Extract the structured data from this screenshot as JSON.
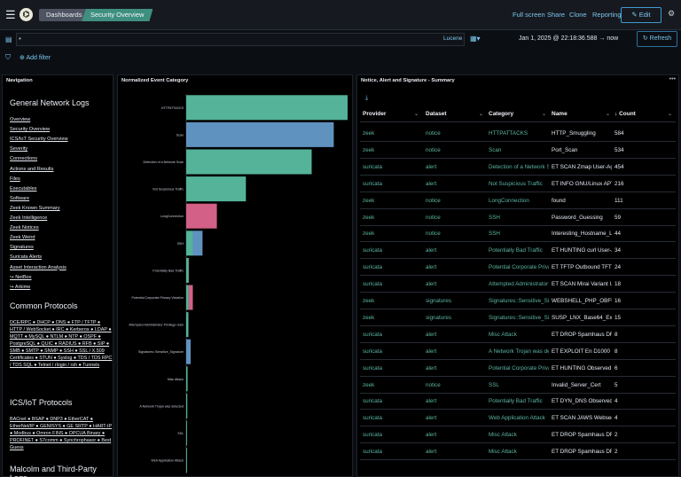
{
  "topbar": {
    "breadcrumb_1": "Dashboards",
    "breadcrumb_2": "Security Overview",
    "links": [
      "Full screen",
      "Share",
      "Clone",
      "Reporting"
    ],
    "edit_label": "Edit",
    "logo_glyph": "⌬"
  },
  "query": {
    "value": "*",
    "language": "Lucene",
    "date_range": "Jan 1, 2025 @ 22:18:36.588",
    "date_arrow": "→",
    "date_end": "now",
    "refresh_label": "Refresh"
  },
  "filter": {
    "add_label": "Add filter"
  },
  "nav": {
    "title": "Navigation",
    "section1": "General Network Logs",
    "links": [
      "Overview",
      "Security Overview",
      "ICS/IoT Security Overview",
      "Severity",
      "Connections",
      "Actions and Results",
      "Files",
      "Executables",
      "Software",
      "Zeek Known Summary",
      "Zeek Intelligence",
      "Zeek Notices",
      "Zeek Weird",
      "Signatures",
      "Suricata Alerts",
      "Asset Interaction Analysis",
      "↪ NetBox",
      "↪ Arkime"
    ],
    "section2": "Common Protocols",
    "common_protocols": "DCE/RPC ● DHCP ● DNS ● FTP / TFTP ● HTTP / WebSocket ● IRC ● Kerberos ● LDAP ● MQTT ● MySQL ● NTLM ● NTP ● OSPF ● PostgreSQL ● QUIC ● RADIUS ● RFB ● SIP ● SMB ● SMTP ● SNMP ● SSH ● SSL / X.509 Certificates ● STUN ● Syslog ● TDS / TDS RPC / TDS SQL ● Telnet / rlogin / rsh ● Tunnels",
    "section3": "ICS/IoT Protocols",
    "ics_protocols": "BACnet ● BSAP ● DNP3 ● EtherCAT ● EtherNet/IP ● GENISYS ● GE SRTP ● HART-IP ● Modbus ● Omron FINS ● OPCUA Binary ● PROFINET ● S7comm ● Synchrophasor ● Best Guess",
    "section4": "Malcolm and Third-Party Logs"
  },
  "chart_panel": {
    "title": "Normalized Event Category"
  },
  "chart_data": {
    "type": "bar",
    "orientation": "horizontal",
    "stacked": true,
    "categories": [
      "HTTPATTACKS",
      "Scan",
      "Detection of a Network Scan",
      "Not Suspicious Traffic",
      "LongConnection",
      "SSH",
      "Potentially Bad Traffic",
      "Potential Corporate Privacy Violation",
      "Attempted Administrator Privilege Gain",
      "Signatures::Sensitive_Signature",
      "Misc Attack",
      "A Network Trojan was detected",
      "SSL",
      "Web Application Attack"
    ],
    "series": [
      {
        "color": "#54b399",
        "values": [
          584,
          0,
          454,
          216,
          0,
          24,
          9,
          9,
          8,
          0,
          5,
          4,
          3,
          3
        ]
      },
      {
        "color": "#6092c0",
        "values": [
          0,
          534,
          0,
          0,
          0,
          0,
          0,
          0,
          0,
          16,
          0,
          0,
          0,
          0
        ]
      },
      {
        "color": "#d36086",
        "values": [
          0,
          0,
          0,
          0,
          111,
          0,
          1,
          15,
          0,
          0,
          0,
          0,
          0,
          0
        ]
      },
      {
        "color": "#6092c0",
        "values": [
          0,
          0,
          0,
          0,
          0,
          35,
          0,
          0,
          0,
          0,
          0,
          0,
          0,
          0
        ]
      }
    ],
    "xlim": [
      0,
      584
    ]
  },
  "table_panel": {
    "title": "Notice, Alert and Signature - Summary",
    "download_icon": "download-icon"
  },
  "table": {
    "headers": [
      "Provider",
      "Dataset",
      "Category",
      "Name",
      "Count"
    ],
    "sort_arrow": "↓",
    "rows": [
      [
        "zeek",
        "notice",
        "HTTPATTACKS",
        "HTTP_Smuggling",
        "584"
      ],
      [
        "zeek",
        "notice",
        "Scan",
        "Port_Scan",
        "534"
      ],
      [
        "suricata",
        "alert",
        "Detection of a Network Sc",
        "ET SCAN Zmap User-Agen",
        "454"
      ],
      [
        "suricata",
        "alert",
        "Not Suspicious Traffic",
        "ET INFO GNU/Linux APT U",
        "216"
      ],
      [
        "zeek",
        "notice",
        "LongConnection",
        "found",
        "111"
      ],
      [
        "zeek",
        "notice",
        "SSH",
        "Password_Guessing",
        "59"
      ],
      [
        "zeek",
        "notice",
        "SSH",
        "Interesting_Hostname_Lo",
        "44"
      ],
      [
        "suricata",
        "alert",
        "Potentially Bad Traffic",
        "ET HUNTING curl User-Ag",
        "34"
      ],
      [
        "suricata",
        "alert",
        "Potential Corporate Priva",
        "ET TFTP Outbound TFTP",
        "24"
      ],
      [
        "suricata",
        "alert",
        "Attempted Administrator",
        "ET SCAN Mirai Variant Us",
        "18"
      ],
      [
        "zeek",
        "signatures",
        "Signatures::Sensitive_Sig",
        "WEBSHELL_PHP_OBFUSC",
        "16"
      ],
      [
        "zeek",
        "signatures",
        "Signatures::Sensitive_Sig",
        "SUSP_LNX_Base64_Exec",
        "15"
      ],
      [
        "suricata",
        "alert",
        "Misc Attack",
        "ET DROP Spamhaus DROF",
        "8"
      ],
      [
        "suricata",
        "alert",
        "A Network Trojan was det",
        "ET EXPLOIT En D1000 Mo",
        "8"
      ],
      [
        "suricata",
        "alert",
        "Potential Corporate Priva",
        "ET HUNTING Observed In",
        "6"
      ],
      [
        "zeek",
        "notice",
        "SSL",
        "Invalid_Server_Cert",
        "5"
      ],
      [
        "suricata",
        "alert",
        "Potentially Bad Traffic",
        "ET DYN_DNS Observed DI",
        "4"
      ],
      [
        "suricata",
        "alert",
        "Web Application Attack",
        "ET SCAN JAWS Webserve",
        "4"
      ],
      [
        "suricata",
        "alert",
        "Misc Attack",
        "ET DROP Spamhaus DROF",
        "2"
      ],
      [
        "suricata",
        "alert",
        "Misc Attack",
        "ET DROP Spamhaus DROF",
        "2"
      ]
    ]
  }
}
